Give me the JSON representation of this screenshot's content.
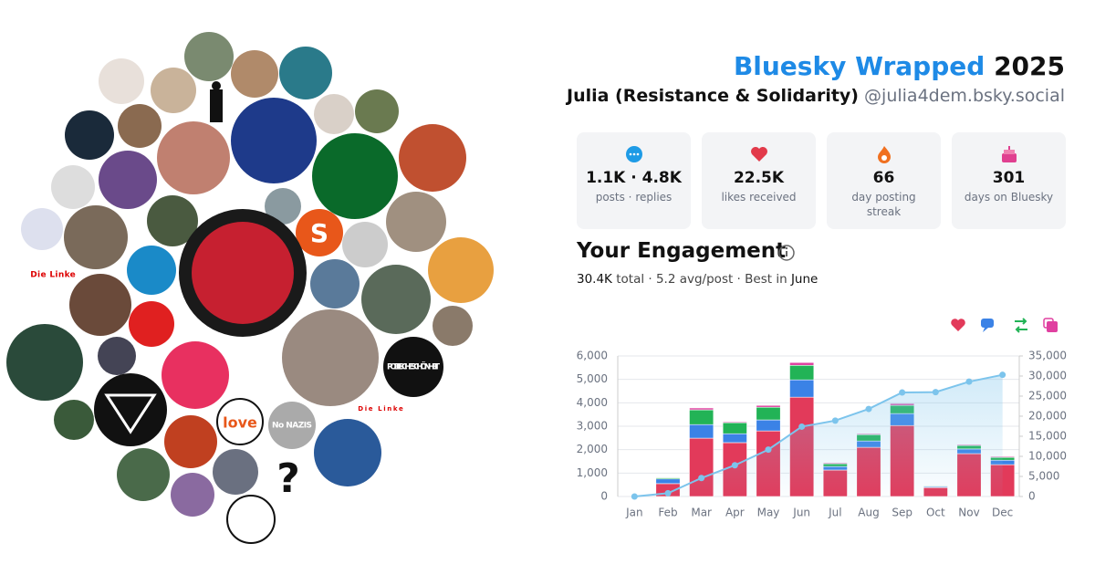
{
  "header": {
    "title": "Bluesky Wrapped",
    "year": "2025",
    "name": "Julia (Resistance & Solidarity)",
    "handle": "@julia4dem.bsky.social"
  },
  "stats": [
    {
      "value": "1.1K · 4.8K",
      "label": "posts · replies"
    },
    {
      "value": "22.5K",
      "label": "likes received"
    },
    {
      "value": "66",
      "label": "day posting streak"
    },
    {
      "value": "301",
      "label": "days on Bluesky"
    }
  ],
  "engagement": {
    "title": "Your Engagement",
    "total": "30.4K",
    "total_label": "total ·",
    "avg": "5.2 avg/post · Best in",
    "best": "June"
  },
  "avatar_labels": [
    "POLITISCHE SCHÖNHEIT",
    "Die Linke",
    "Die Linke",
    "S",
    "?",
    "No NAZIS",
    "love"
  ],
  "chart_data": {
    "type": "bar",
    "categories": [
      "Jan",
      "Feb",
      "Mar",
      "Apr",
      "May",
      "Jun",
      "Jul",
      "Aug",
      "Sep",
      "Oct",
      "Nov",
      "Dec"
    ],
    "series": [
      {
        "color": "#e23a5a",
        "values": [
          0,
          550,
          2490,
          2300,
          2800,
          4240,
          1130,
          2100,
          3030,
          380,
          1830,
          1360
        ]
      },
      {
        "color": "#3b82e6",
        "values": [
          0,
          200,
          580,
          380,
          470,
          740,
          150,
          270,
          510,
          40,
          200,
          190
        ]
      },
      {
        "color": "#22b356",
        "values": [
          0,
          50,
          630,
          470,
          540,
          620,
          120,
          270,
          350,
          30,
          150,
          120
        ]
      },
      {
        "color": "#e040a0",
        "values": [
          0,
          20,
          80,
          40,
          80,
          120,
          40,
          40,
          80,
          20,
          40,
          40
        ]
      },
      {
        "type": "line",
        "axis": "y2",
        "color": "#7cc4ec",
        "values": [
          0,
          820,
          4600,
          7790,
          11680,
          17400,
          18900,
          21800,
          25900,
          26000,
          28600,
          30300
        ]
      }
    ],
    "ylim": [
      0,
      6000
    ],
    "yticks": [
      0,
      {
        "value": 1000,
        "label": "1,000"
      },
      {
        "value": 2000,
        "label": "2,000"
      },
      {
        "value": 3000,
        "label": "3,000"
      },
      {
        "value": 4000,
        "label": "4,000"
      },
      {
        "value": 5000,
        "label": "5,000"
      },
      {
        "value": 6000,
        "label": "6,000"
      }
    ],
    "y2lim": [
      0,
      35000
    ],
    "y2ticks": [
      0,
      {
        "value": 5000,
        "label": "5,000"
      },
      {
        "value": 10000,
        "label": "10,000"
      },
      {
        "value": 15000,
        "label": "15,000"
      },
      {
        "value": 20000,
        "label": "20,000"
      },
      {
        "value": 25000,
        "label": "25,000"
      },
      {
        "value": 30000,
        "label": "30,000"
      },
      {
        "value": 35000,
        "label": "35,000"
      }
    ],
    "grid": true
  }
}
